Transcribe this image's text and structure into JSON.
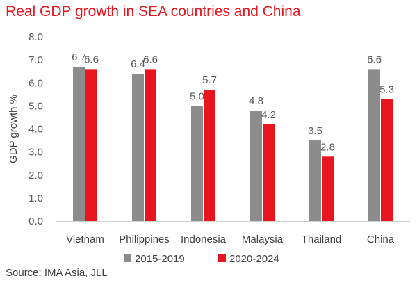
{
  "title": "Real GDP growth in SEA countries and China",
  "source": "Source: IMA Asia, JLL",
  "colors": {
    "series1": "#8c8c8c",
    "series2": "#e8141e",
    "axis": "#d0d0d0"
  },
  "chart_data": {
    "type": "bar",
    "title": "Real GDP growth in SEA countries and China",
    "ylabel": "GDP growth %",
    "xlabel": "",
    "ylim": [
      0,
      8
    ],
    "yticks": [
      "0.0",
      "1.0",
      "2.0",
      "3.0",
      "4.0",
      "5.0",
      "6.0",
      "7.0",
      "8.0"
    ],
    "grid": false,
    "legend": "bottom",
    "categories": [
      "Vietnam",
      "Philippines",
      "Indonesia",
      "Malaysia",
      "Thailand",
      "China"
    ],
    "series": [
      {
        "name": "2015-2019",
        "values": [
          6.7,
          6.4,
          5.0,
          4.8,
          3.5,
          6.6
        ],
        "labels": [
          "6.7",
          "6.4",
          "5.0",
          "4.8",
          "3.5",
          "6.6"
        ]
      },
      {
        "name": "2020-2024",
        "values": [
          6.6,
          6.6,
          5.7,
          4.2,
          2.8,
          5.3
        ],
        "labels": [
          "6.6",
          "6.6",
          "5.7",
          "4.2",
          "2.8",
          "5.3"
        ]
      }
    ]
  }
}
